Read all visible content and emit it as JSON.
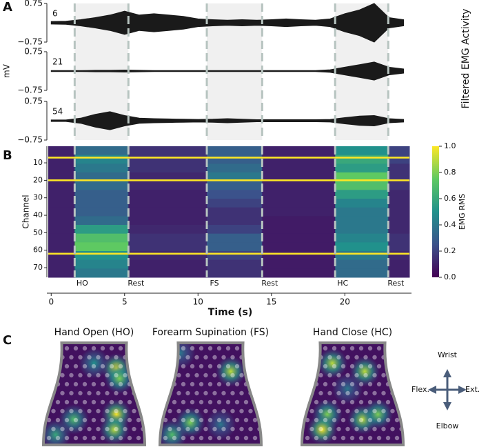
{
  "chart_data": [
    {
      "type": "area",
      "panel": "A",
      "ylabel": "mV",
      "side_label": "Filtered EMG Activity",
      "x": [
        0,
        1,
        2,
        3,
        4,
        5,
        6,
        7,
        8,
        9,
        10,
        11,
        12,
        13,
        14,
        15,
        16,
        17,
        18,
        19,
        20,
        21,
        22,
        23,
        24
      ],
      "xlim": [
        -0.2,
        24.4
      ],
      "ylim": [
        -0.75,
        0.75
      ],
      "yticks": [
        {
          "value": 0.75,
          "label": "0.75"
        },
        {
          "value": -0.75,
          "label": "−0.75"
        }
      ],
      "series": [
        {
          "name": "6",
          "color": "#1a1a1a",
          "values": [
            0.05,
            0.06,
            0.12,
            0.2,
            0.3,
            0.45,
            0.3,
            0.35,
            0.3,
            0.25,
            0.15,
            0.12,
            0.1,
            0.12,
            0.1,
            0.12,
            0.15,
            0.12,
            0.1,
            0.15,
            0.35,
            0.5,
            0.75,
            0.2,
            0.12
          ]
        },
        {
          "name": "21",
          "color": "#1a1a1a",
          "values": [
            0.02,
            0.02,
            0.02,
            0.03,
            0.03,
            0.04,
            0.03,
            0.02,
            0.02,
            0.02,
            0.02,
            0.02,
            0.02,
            0.02,
            0.02,
            0.02,
            0.02,
            0.02,
            0.02,
            0.05,
            0.15,
            0.25,
            0.35,
            0.15,
            0.08
          ]
        },
        {
          "name": "54",
          "color": "#1a1a1a",
          "values": [
            0.03,
            0.03,
            0.1,
            0.25,
            0.35,
            0.2,
            0.1,
            0.08,
            0.07,
            0.06,
            0.05,
            0.06,
            0.08,
            0.06,
            0.04,
            0.04,
            0.04,
            0.04,
            0.04,
            0.05,
            0.12,
            0.18,
            0.2,
            0.08,
            0.05
          ]
        }
      ],
      "events": [
        {
          "time": 1.6,
          "label": "HO"
        },
        {
          "time": 5.26,
          "label": "Rest"
        },
        {
          "time": 10.6,
          "label": "FS"
        },
        {
          "time": 14.37,
          "label": "Rest"
        },
        {
          "time": 19.34,
          "label": "HC"
        },
        {
          "time": 22.96,
          "label": "Rest"
        }
      ]
    },
    {
      "type": "heatmap",
      "panel": "B",
      "ylabel": "Channel",
      "xlabel": "Time (s)",
      "xlim": [
        -0.2,
        24.4
      ],
      "xticks": [
        0,
        5,
        10,
        15,
        20
      ],
      "ylim": [
        75.5,
        0.5
      ],
      "yticks": [
        10,
        20,
        30,
        40,
        50,
        60,
        70
      ],
      "values": [
        [
          0.1,
          0.35,
          0.15,
          0.3,
          0.1,
          0.5,
          0.2
        ],
        [
          0.1,
          0.45,
          0.15,
          0.3,
          0.1,
          0.6,
          0.2
        ],
        [
          0.1,
          0.4,
          0.15,
          0.35,
          0.1,
          0.55,
          0.15
        ],
        [
          0.1,
          0.35,
          0.12,
          0.4,
          0.1,
          0.75,
          0.15
        ],
        [
          0.1,
          0.35,
          0.12,
          0.3,
          0.1,
          0.7,
          0.15
        ],
        [
          0.1,
          0.3,
          0.1,
          0.25,
          0.1,
          0.55,
          0.12
        ],
        [
          0.1,
          0.3,
          0.1,
          0.2,
          0.1,
          0.45,
          0.12
        ],
        [
          0.1,
          0.3,
          0.1,
          0.15,
          0.1,
          0.4,
          0.12
        ],
        [
          0.1,
          0.35,
          0.1,
          0.15,
          0.08,
          0.4,
          0.12
        ],
        [
          0.1,
          0.55,
          0.12,
          0.2,
          0.08,
          0.4,
          0.12
        ],
        [
          0.1,
          0.7,
          0.15,
          0.3,
          0.08,
          0.45,
          0.15
        ],
        [
          0.1,
          0.75,
          0.15,
          0.3,
          0.08,
          0.5,
          0.15
        ],
        [
          0.1,
          0.5,
          0.12,
          0.2,
          0.08,
          0.4,
          0.12
        ],
        [
          0.1,
          0.45,
          0.1,
          0.15,
          0.08,
          0.35,
          0.1
        ],
        [
          0.1,
          0.4,
          0.1,
          0.15,
          0.08,
          0.35,
          0.1
        ]
      ],
      "saturated_channels": [
        7,
        20,
        62
      ],
      "colorbar": {
        "label": "EMG RMS",
        "lim": [
          0,
          1
        ],
        "ticks": [
          {
            "value": 0,
            "label": "0.0"
          },
          {
            "value": 0.2,
            "label": "0.2"
          },
          {
            "value": 0.4,
            "label": "0.4"
          },
          {
            "value": 0.6,
            "label": "0.6"
          },
          {
            "value": 0.8,
            "label": "0.8"
          },
          {
            "value": 1,
            "label": "1.0"
          }
        ]
      }
    },
    {
      "type": "map",
      "panel": "C",
      "maps": [
        {
          "title": "Hand Open (HO)",
          "hotspots": [
            {
              "x": 0.72,
              "y": 0.25,
              "value": 1.0
            },
            {
              "x": 0.75,
              "y": 0.35,
              "value": 0.8
            },
            {
              "x": 0.72,
              "y": 0.7,
              "value": 1.0
            },
            {
              "x": 0.7,
              "y": 0.85,
              "value": 0.9
            },
            {
              "x": 0.3,
              "y": 0.75,
              "value": 0.7
            },
            {
              "x": 0.12,
              "y": 0.9,
              "value": 0.6
            },
            {
              "x": 0.5,
              "y": 0.2,
              "value": 0.5
            }
          ]
        },
        {
          "title": "Forearm Supination (FS)",
          "hotspots": [
            {
              "x": 0.7,
              "y": 0.28,
              "value": 0.9
            },
            {
              "x": 0.3,
              "y": 0.78,
              "value": 0.8
            },
            {
              "x": 0.12,
              "y": 0.9,
              "value": 0.7
            },
            {
              "x": 0.6,
              "y": 0.8,
              "value": 0.4
            },
            {
              "x": 0.2,
              "y": 0.1,
              "value": 0.4
            }
          ]
        },
        {
          "title": "Hand Close (HC)",
          "hotspots": [
            {
              "x": 0.3,
              "y": 0.2,
              "value": 0.9
            },
            {
              "x": 0.62,
              "y": 0.28,
              "value": 0.9
            },
            {
              "x": 0.25,
              "y": 0.7,
              "value": 0.8
            },
            {
              "x": 0.2,
              "y": 0.85,
              "value": 1.0
            },
            {
              "x": 0.6,
              "y": 0.75,
              "value": 0.9
            },
            {
              "x": 0.75,
              "y": 0.7,
              "value": 0.8
            },
            {
              "x": 0.45,
              "y": 0.45,
              "value": 0.4
            }
          ]
        }
      ],
      "compass": {
        "up": "Wrist",
        "down": "Elbow",
        "left": "Flex.",
        "right": "Ext."
      }
    }
  ]
}
